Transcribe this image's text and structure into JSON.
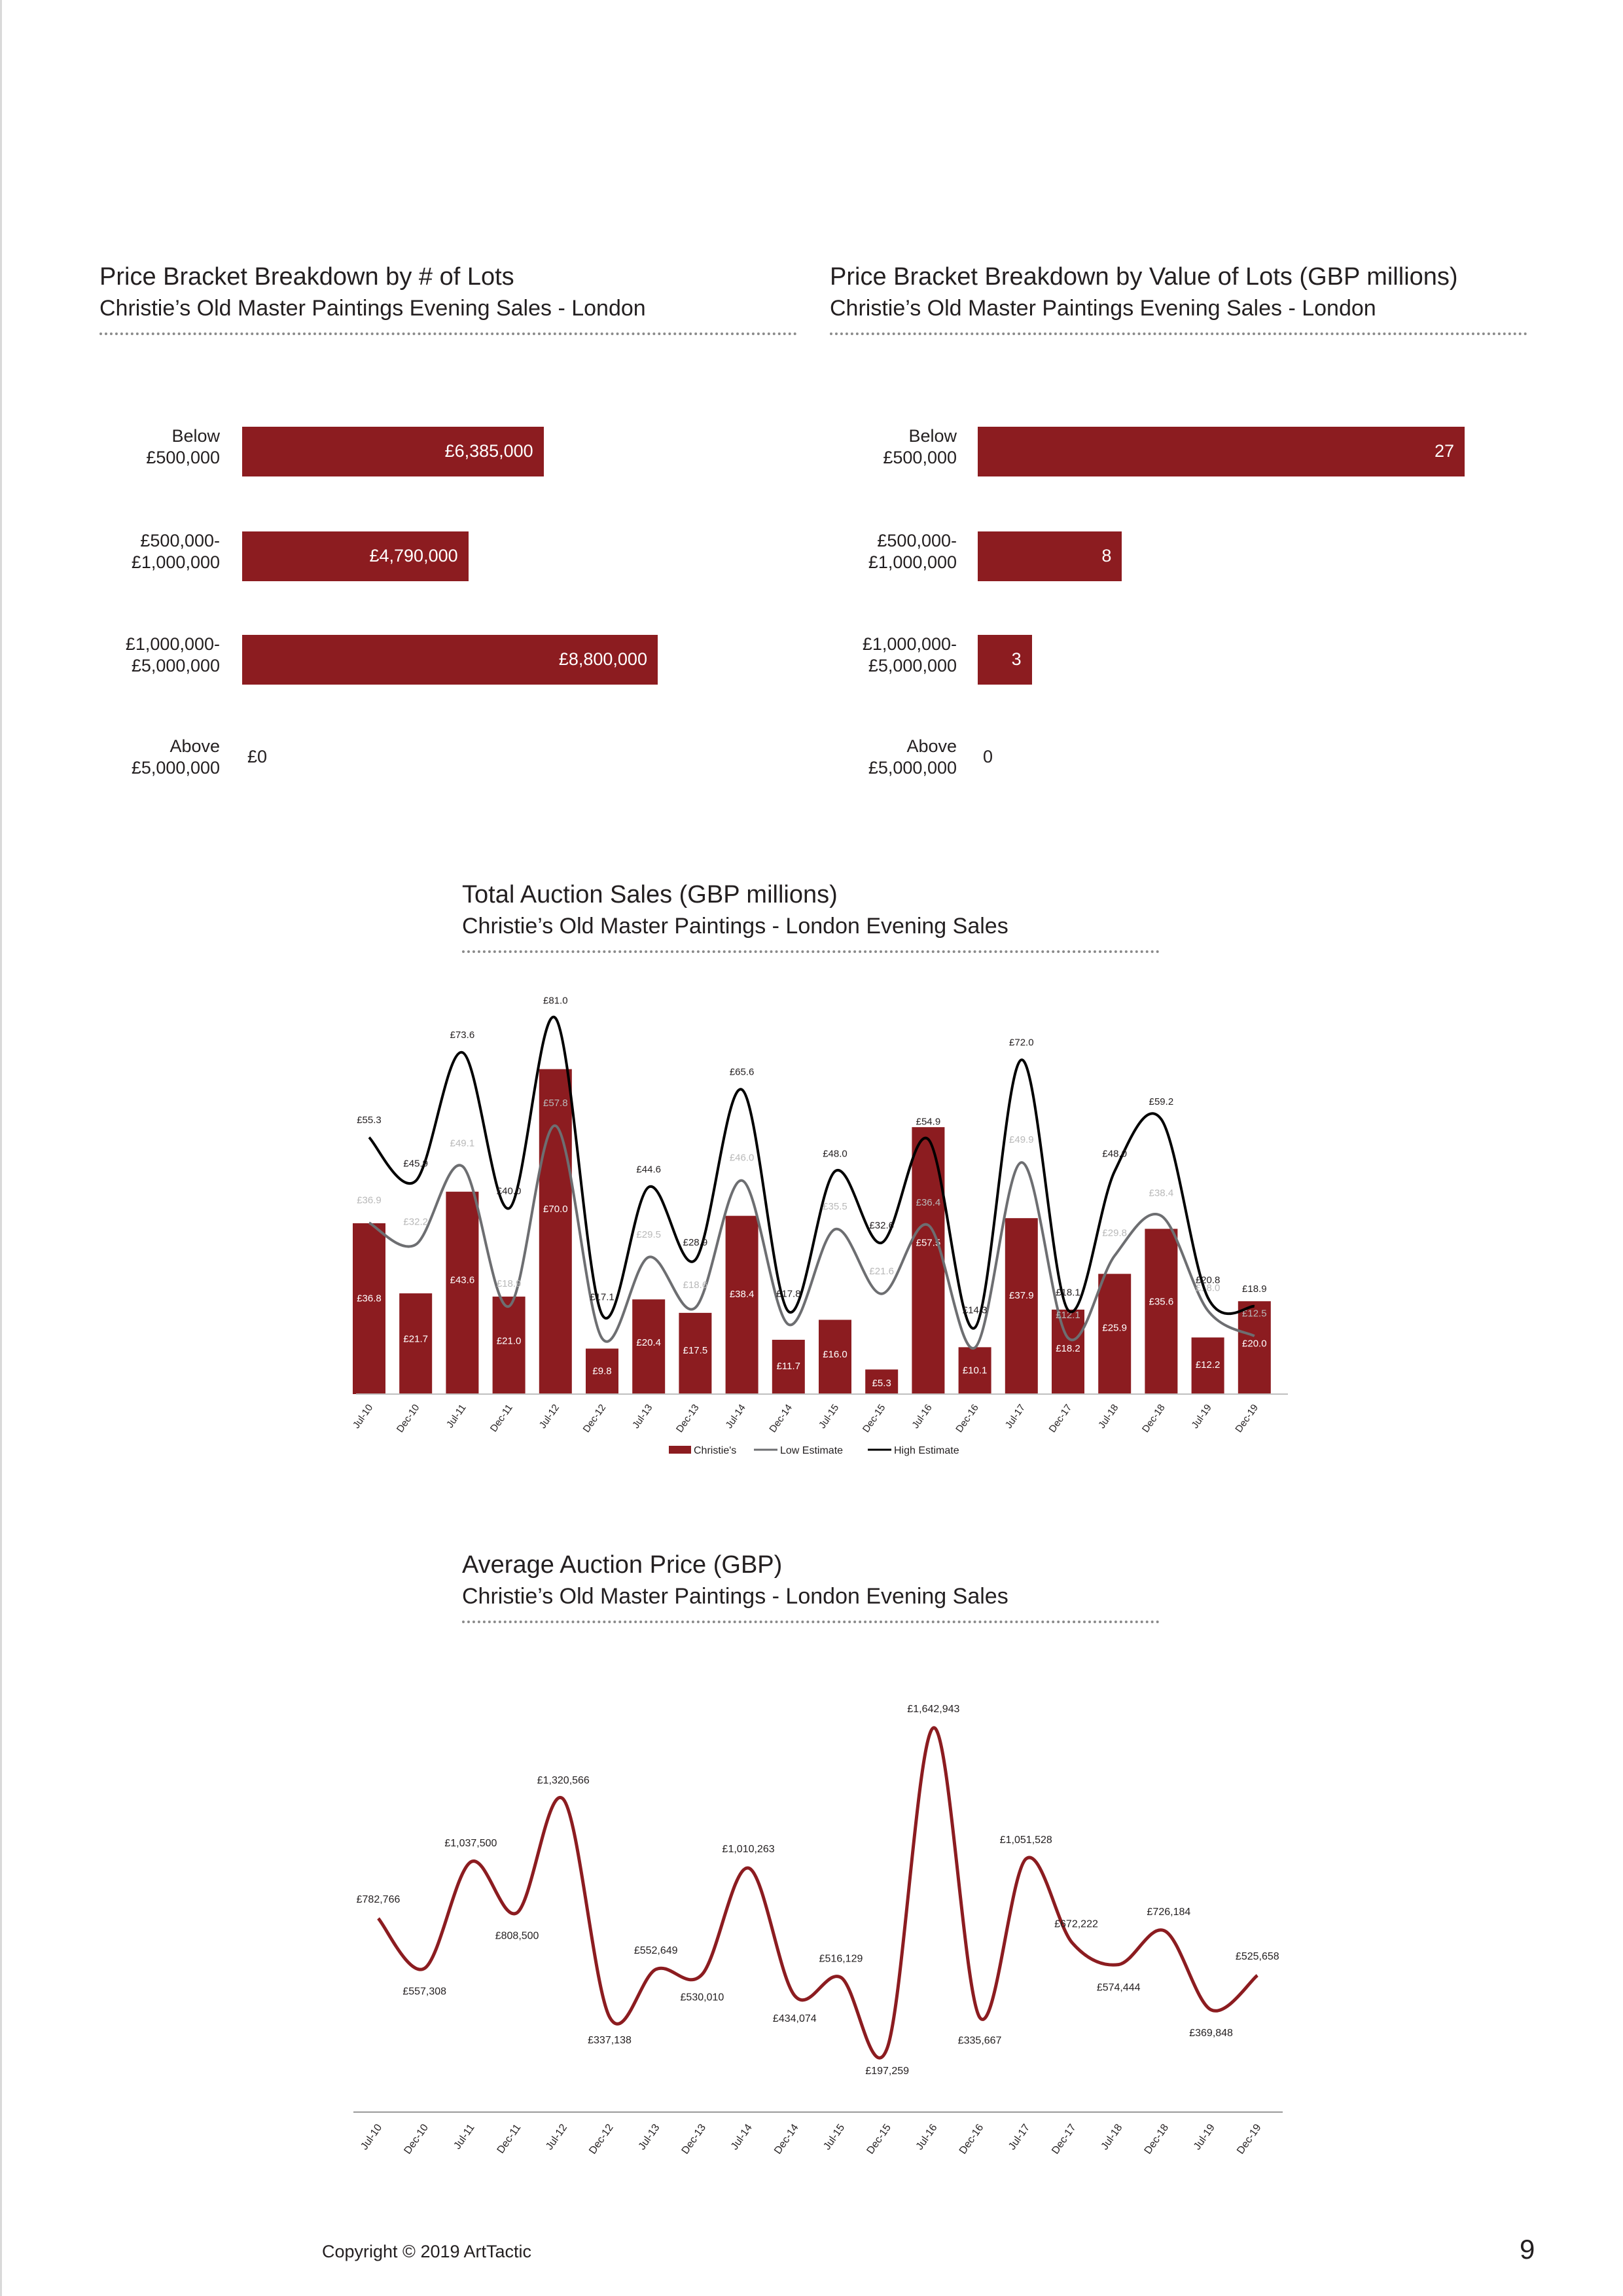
{
  "charts": {
    "lots": {
      "title": "Price Bracket Breakdown by # of Lots",
      "subtitle": "Christie’s Old Master Paintings Evening Sales - London"
    },
    "value": {
      "title": "Price Bracket Breakdown by Value of Lots (GBP millions)",
      "subtitle": "Christie’s Old Master Paintings Evening Sales - London"
    },
    "total": {
      "title": "Total Auction Sales (GBP millions)",
      "subtitle": "Christie’s Old Master Paintings - London Evening Sales"
    },
    "average": {
      "title": "Average Auction Price (GBP)",
      "subtitle": "Christie’s Old Master Paintings - London Evening Sales"
    }
  },
  "chart_data": [
    {
      "type": "bar",
      "orientation": "horizontal",
      "categories": [
        "Below\n£500,000",
        "£500,000-\n£1,000,000",
        "£1,000,000-\n£5,000,000",
        "Above\n£5,000,000"
      ],
      "values": [
        6385000,
        4790000,
        8800000,
        0
      ],
      "labels": [
        "£6,385,000",
        "£4,790,000",
        "£8,800,000",
        "£0"
      ],
      "xlim": [
        0,
        13000000
      ],
      "color": "#8c1c20"
    },
    {
      "type": "bar",
      "orientation": "horizontal",
      "categories": [
        "Below\n£500,000",
        "£500,000-\n£1,000,000",
        "£1,000,000-\n£5,000,000",
        "Above\n£5,000,000"
      ],
      "values": [
        27,
        8,
        3,
        0
      ],
      "labels": [
        "27",
        "8",
        "3",
        "0"
      ],
      "xlim": [
        0,
        31.5
      ],
      "color": "#8c1c20"
    },
    {
      "type": "bar",
      "categories": [
        "Jul-10",
        "Dec-10",
        "Jul-11",
        "Dec-11",
        "Jul-12",
        "Dec-12",
        "Jul-13",
        "Dec-13",
        "Jul-14",
        "Dec-14",
        "Jul-15",
        "Dec-15",
        "Jul-16",
        "Dec-16",
        "Jul-17",
        "Dec-17",
        "Jul-18",
        "Dec-18",
        "Jul-19",
        "Dec-19"
      ],
      "ylim": [
        0,
        86
      ],
      "grid": false,
      "legend_position": "bottom",
      "series": [
        {
          "name": "Christie's",
          "kind": "bar",
          "color": "#8c1c20",
          "values": [
            36.8,
            21.7,
            43.6,
            21.0,
            70.0,
            9.8,
            20.4,
            17.5,
            38.4,
            11.7,
            16.0,
            5.3,
            57.5,
            10.1,
            37.9,
            18.2,
            25.9,
            35.6,
            12.2,
            20.0
          ],
          "labels": [
            "£36.8",
            "£21.7",
            "£43.6",
            "£21.0",
            "£70.0",
            "£9.8",
            "£20.4",
            "£17.5",
            "£38.4",
            "£11.7",
            "£16.0",
            "£5.3",
            "£57.5",
            "£10.1",
            "£37.9",
            "£18.2",
            "£25.9",
            "£35.6",
            "£12.2",
            "£20.0"
          ]
        },
        {
          "name": "Low Estimate",
          "kind": "line",
          "color": "#6d6e71",
          "values": [
            36.9,
            32.2,
            49.1,
            18.9,
            57.8,
            12.0,
            29.5,
            18.6,
            46.0,
            15.0,
            35.5,
            21.6,
            36.4,
            10.0,
            49.9,
            12.1,
            29.8,
            38.4,
            18.0,
            12.5
          ],
          "labels": [
            "£36.9",
            "£32.2",
            "£49.1",
            "£18.9",
            "£57.8",
            "",
            "£29.5",
            "£18.6",
            "£46.0",
            "",
            "£35.5",
            "£21.6",
            "£36.4",
            "",
            "£49.9",
            "£12.1",
            "£29.8",
            "£38.4",
            "£18.0",
            "£12.5"
          ]
        },
        {
          "name": "High Estimate",
          "kind": "line",
          "color": "#000000",
          "values": [
            55.3,
            45.9,
            73.6,
            40.0,
            81.0,
            17.1,
            44.6,
            28.9,
            65.6,
            17.8,
            48.0,
            32.6,
            54.9,
            14.3,
            72.0,
            18.1,
            48.0,
            59.2,
            20.8,
            18.9
          ],
          "labels": [
            "£55.3",
            "£45.9",
            "£73.6",
            "£40.0",
            "£81.0",
            "£17.1",
            "£44.6",
            "£28.9",
            "£65.6",
            "£17.8",
            "£48.0",
            "£32.6",
            "£54.9",
            "£14.3",
            "£72.0",
            "£18.1",
            "£48.0",
            "£59.2",
            "£20.8",
            "£18.9"
          ]
        }
      ]
    },
    {
      "type": "line",
      "categories": [
        "Jul-10",
        "Dec-10",
        "Jul-11",
        "Dec-11",
        "Jul-12",
        "Dec-12",
        "Jul-13",
        "Dec-13",
        "Jul-14",
        "Dec-14",
        "Jul-15",
        "Dec-15",
        "Jul-16",
        "Dec-16",
        "Jul-17",
        "Dec-17",
        "Jul-18",
        "Dec-18",
        "Jul-19",
        "Dec-19"
      ],
      "ylim": [
        0,
        1950000
      ],
      "grid": false,
      "series": [
        {
          "name": "",
          "color": "#8c1c20",
          "values": [
            782766,
            557308,
            1037500,
            808500,
            1320566,
            337138,
            552649,
            530010,
            1010263,
            434074,
            516129,
            197259,
            1642943,
            335667,
            1051528,
            672222,
            574444,
            726184,
            369848,
            525658
          ],
          "labels": [
            "£782,766",
            "£557,308",
            "£1,037,500",
            "£808,500",
            "£1,320,566",
            "£337,138",
            "£552,649",
            "£530,010",
            "£1,010,263",
            "£434,074",
            "£516,129",
            "£197,259",
            "£1,642,943",
            "£335,667",
            "£1,051,528",
            "£672,222",
            "£574,444",
            "£726,184",
            "£369,848",
            "£525,658"
          ]
        }
      ]
    }
  ],
  "footer": {
    "copyright": "Copyright © 2019 ArtTactic",
    "page_number": "9"
  }
}
